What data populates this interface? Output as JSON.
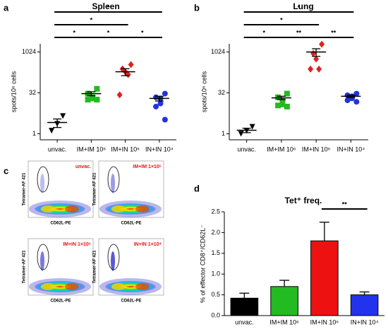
{
  "chart_data": [
    {
      "type": "dotplot",
      "letter": "a",
      "title": "Spleen",
      "ylabel": "spots/10⁶ cells",
      "log_base": 2,
      "categories": [
        "unvac.",
        "IM+IM 10⁶",
        "IM+IN 10⁶",
        "IN+IN 10⁴"
      ],
      "ylim": [
        0.6,
        2048
      ],
      "yticks": [
        1,
        32,
        1024
      ],
      "groups": [
        {
          "color": "#000000",
          "marker": "triangle-down",
          "points": [
            4.5,
            2.3,
            1.3
          ],
          "mean": 2.6,
          "sem": 0.9
        },
        {
          "color": "#22bb22",
          "marker": "square",
          "points": [
            45,
            30,
            22,
            20,
            18,
            18
          ],
          "mean": 30,
          "sem": 5
        },
        {
          "color": "#dd2222",
          "marker": "diamond",
          "points": [
            350,
            244,
            192,
            151,
            27
          ],
          "mean": 192,
          "sem": 55
        },
        {
          "color": "#2233dd",
          "marker": "circle",
          "points": [
            30,
            22,
            20,
            13,
            10,
            3.3
          ],
          "mean": 20,
          "sem": 4
        }
      ],
      "comparisons": [
        {
          "from": 0,
          "to": 3,
          "label": "*"
        },
        {
          "from": 0,
          "to": 2,
          "label": "*"
        },
        {
          "from": 0,
          "to": 1,
          "label": "*"
        },
        {
          "from": 1,
          "to": 2,
          "label": "*"
        },
        {
          "from": 2,
          "to": 3,
          "label": "*"
        }
      ]
    },
    {
      "type": "dotplot",
      "letter": "b",
      "title": "Lung",
      "ylabel": "spots/10⁶ cells",
      "log_base": 2,
      "categories": [
        "unvac.",
        "IM+IM 10⁶",
        "IM+IN 10⁶",
        "IN+IN 10⁴"
      ],
      "ylim": [
        0.6,
        2048
      ],
      "yticks": [
        1,
        32,
        1024
      ],
      "groups": [
        {
          "color": "#000000",
          "marker": "triangle-down",
          "points": [
            1.8,
            1.3,
            1
          ],
          "mean": 1.35,
          "sem": 0.25
        },
        {
          "color": "#22bb22",
          "marker": "square",
          "points": [
            30,
            22,
            16,
            12,
            11,
            10
          ],
          "mean": 21,
          "sem": 3
        },
        {
          "color": "#dd2222",
          "marker": "diamond",
          "points": [
            1970,
            900,
            560,
            240,
            240
          ],
          "mean": 1024,
          "sem": 320
        },
        {
          "color": "#2233dd",
          "marker": "circle",
          "points": [
            30,
            26,
            24,
            20,
            17,
            15
          ],
          "mean": 24,
          "sem": 2.5
        }
      ],
      "comparisons": [
        {
          "from": 0,
          "to": 3,
          "label": "*"
        },
        {
          "from": 0,
          "to": 2,
          "label": "*"
        },
        {
          "from": 0,
          "to": 1,
          "label": "*"
        },
        {
          "from": 1,
          "to": 2,
          "label": "**"
        },
        {
          "from": 2,
          "to": 3,
          "label": "**"
        }
      ]
    },
    {
      "type": "bar",
      "letter": "d",
      "title": "Tet⁺ freq.",
      "ylabel": "% of effector CD8⁺/CD62L⁻",
      "categories": [
        "unvac.",
        "IM+IM 10⁶",
        "IM+IN 10⁶",
        "IN+IN 10⁴"
      ],
      "values": [
        0.42,
        0.7,
        1.8,
        0.5
      ],
      "errors": [
        0.12,
        0.15,
        0.45,
        0.07
      ],
      "colors": [
        "#000000",
        "#22bb22",
        "#ee1111",
        "#2233ee"
      ],
      "ylim": [
        0,
        2.5
      ],
      "yticks": [
        {
          "value": 0,
          "label": "0.0"
        },
        0.5,
        {
          "value": 1,
          "label": "1.0"
        },
        1.5,
        {
          "value": 2,
          "label": "2.0"
        },
        2.5
      ],
      "comparisons": [
        {
          "from": 2,
          "to": 3,
          "label": "**"
        }
      ]
    }
  ],
  "flow": {
    "letter": "c",
    "y_axis": "Tetramer-AF 421",
    "x_axis": "CD62L-PE",
    "plots": [
      "unvac.",
      "IM+IM 1×10⁶",
      "IM+IN 1×10⁶",
      "IN+IN 1×10⁴"
    ]
  }
}
